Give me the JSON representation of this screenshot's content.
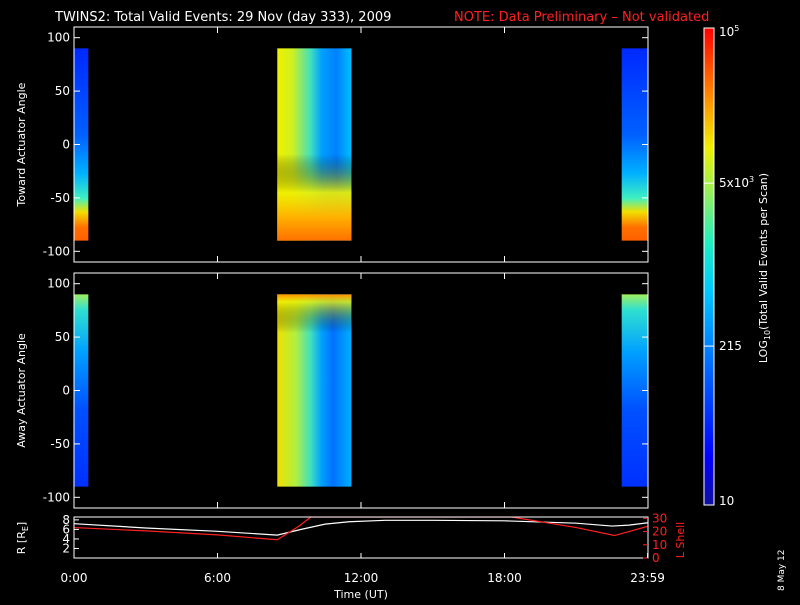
{
  "title": {
    "main": "TWINS2: Total Valid Events: 29 Nov (day 333), 2009",
    "note": "NOTE: Data Preliminary – Not validated"
  },
  "stamp": "8 May 12",
  "chart_data": [
    {
      "type": "heatmap",
      "panel": "toward",
      "ylabel": "Toward Actuator Angle",
      "ylim": [
        -110,
        110
      ],
      "yticks": [
        100,
        50,
        0,
        -50,
        -100
      ],
      "x_hours_lim": [
        0,
        24
      ],
      "data_blocks": [
        {
          "start_hour": 0.0,
          "end_hour": 0.6,
          "scheme": "toward-weak"
        },
        {
          "start_hour": 8.5,
          "end_hour": 11.6,
          "scheme": "toward-strong"
        },
        {
          "start_hour": 22.9,
          "end_hour": 24.0,
          "scheme": "toward-weak"
        }
      ],
      "angle_range": [
        -90,
        90
      ]
    },
    {
      "type": "heatmap",
      "panel": "away",
      "ylabel": "Away Actuator Angle",
      "ylim": [
        -110,
        110
      ],
      "yticks": [
        100,
        50,
        0,
        -50,
        -100
      ],
      "x_hours_lim": [
        0,
        24
      ],
      "data_blocks": [
        {
          "start_hour": 0.0,
          "end_hour": 0.6,
          "scheme": "away-weak"
        },
        {
          "start_hour": 8.5,
          "end_hour": 11.6,
          "scheme": "away-strong"
        },
        {
          "start_hour": 22.9,
          "end_hour": 24.0,
          "scheme": "away-weak"
        }
      ],
      "angle_range": [
        -90,
        90
      ]
    },
    {
      "type": "line",
      "panel": "orbit",
      "ylabel_left": "R [R",
      "ylabel_left_sub": "E",
      "ylabel_left_end": "]",
      "ylabel_right": "L Shell",
      "left_ticks": [
        2,
        4,
        6,
        8
      ],
      "left_lim": [
        0,
        8.6
      ],
      "right_ticks": [
        0,
        10,
        20,
        30
      ],
      "right_lim": [
        0,
        31
      ],
      "xticks": [
        {
          "hour": 0,
          "label": "0:00"
        },
        {
          "hour": 6,
          "label": "6:00"
        },
        {
          "hour": 12,
          "label": "12:00"
        },
        {
          "hour": 18,
          "label": "18:00"
        },
        {
          "hour": 23.983,
          "label": "23:59"
        }
      ],
      "xlabel": "Time (UT)",
      "series": [
        {
          "axis": "left",
          "color": "#ffffff",
          "x": [
            0,
            3,
            6,
            8.5,
            9.5,
            10.5,
            11.5,
            13,
            15,
            18,
            21,
            22.5,
            23.2,
            24
          ],
          "y": [
            7.2,
            6.3,
            5.6,
            4.8,
            6.0,
            7.1,
            7.6,
            7.9,
            7.9,
            7.8,
            7.3,
            6.7,
            6.9,
            7.4
          ]
        },
        {
          "axis": "right",
          "color": "#ff2020",
          "x": [
            0,
            3,
            6,
            8.5,
            9.4,
            9.9,
            18.3,
            21,
            22.6,
            24
          ],
          "y": [
            23,
            20.5,
            17.5,
            13.8,
            24,
            31,
            31,
            23,
            17,
            24
          ]
        }
      ]
    }
  ],
  "colorbar": {
    "label_pre": "LOG",
    "label_sub": "10",
    "label_post": "(Total Valid  Events per Scan)",
    "ticks": [
      {
        "value": 10,
        "label": "10"
      },
      {
        "value": 215,
        "label": "215"
      },
      {
        "value": 5000,
        "label": "5x10",
        "sup": "3"
      },
      {
        "value": 100000,
        "label": "10",
        "sup": "5"
      }
    ],
    "log_range": [
      1,
      5
    ]
  }
}
